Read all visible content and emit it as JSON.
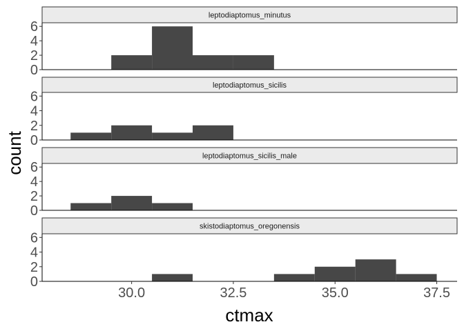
{
  "chart_data": {
    "type": "bar",
    "subtype": "faceted histogram",
    "xlabel": "ctmax",
    "ylabel": "count",
    "xlim": [
      27.8,
      38.0
    ],
    "ylim": [
      0,
      6.5
    ],
    "x_ticks": [
      30.0,
      32.5,
      35.0,
      37.5
    ],
    "x_tick_labels": [
      "30.0",
      "32.5",
      "35.0",
      "37.5"
    ],
    "y_ticks": [
      0,
      2,
      4,
      6
    ],
    "y_tick_labels": [
      "0",
      "2",
      "4",
      "6"
    ],
    "bin_width": 1,
    "bar_color": "#474747",
    "grid": false,
    "facets": [
      {
        "label": "leptodiaptomus_minutus",
        "bins": [
          {
            "x0": 29.5,
            "x1": 30.5,
            "count": 2
          },
          {
            "x0": 30.5,
            "x1": 31.5,
            "count": 6
          },
          {
            "x0": 31.5,
            "x1": 32.5,
            "count": 2
          },
          {
            "x0": 32.5,
            "x1": 33.5,
            "count": 2
          }
        ]
      },
      {
        "label": "leptodiaptomus_sicilis",
        "bins": [
          {
            "x0": 28.5,
            "x1": 29.5,
            "count": 1
          },
          {
            "x0": 29.5,
            "x1": 30.5,
            "count": 2
          },
          {
            "x0": 30.5,
            "x1": 31.5,
            "count": 1
          },
          {
            "x0": 31.5,
            "x1": 32.5,
            "count": 2
          }
        ]
      },
      {
        "label": "leptodiaptomus_sicilis_male",
        "bins": [
          {
            "x0": 28.5,
            "x1": 29.5,
            "count": 1
          },
          {
            "x0": 29.5,
            "x1": 30.5,
            "count": 2
          },
          {
            "x0": 30.5,
            "x1": 31.5,
            "count": 1
          }
        ]
      },
      {
        "label": "skistodiaptomus_oregonensis",
        "bins": [
          {
            "x0": 30.5,
            "x1": 31.5,
            "count": 1
          },
          {
            "x0": 33.5,
            "x1": 34.5,
            "count": 1
          },
          {
            "x0": 34.5,
            "x1": 35.5,
            "count": 2
          },
          {
            "x0": 35.5,
            "x1": 36.5,
            "count": 3
          },
          {
            "x0": 36.5,
            "x1": 37.5,
            "count": 1
          }
        ]
      }
    ]
  }
}
